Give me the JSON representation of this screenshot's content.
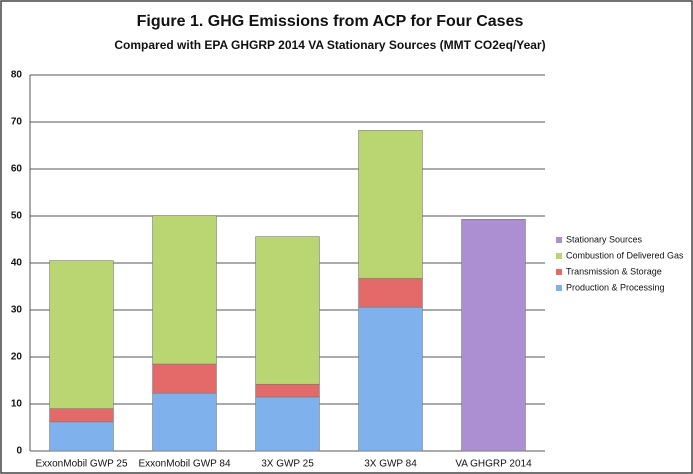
{
  "chart_data": {
    "type": "stacked-bar",
    "title": "Figure 1. GHG Emissions from ACP for Four Cases",
    "subtitle": "Compared with EPA GHGRP 2014 VA Stationary Sources (MMT CO2eq/Year)",
    "categories": [
      "ExxonMobil GWP 25",
      "ExxonMobil GWP 84",
      "3X GWP 25",
      "3X GWP 84",
      "VA GHGRP 2014"
    ],
    "series": [
      {
        "name": "Production & Processing",
        "color": "#7fb2ec",
        "values": [
          6.2,
          12.3,
          11.5,
          30.6,
          null
        ]
      },
      {
        "name": "Transmission & Storage",
        "color": "#e46a6a",
        "values": [
          2.8,
          6.2,
          2.7,
          6.1,
          null
        ]
      },
      {
        "name": "Combustion of Delivered Gas",
        "color": "#b9d672",
        "values": [
          31.5,
          31.6,
          31.4,
          31.5,
          null
        ]
      },
      {
        "name": "Stationary Sources",
        "color": "#ab8fd2",
        "values": [
          null,
          null,
          null,
          null,
          49.3
        ]
      }
    ],
    "ylim": [
      0,
      80
    ],
    "yticks": [
      0,
      10,
      20,
      30,
      40,
      50,
      60,
      70,
      80
    ],
    "grid": true,
    "legend": "right"
  }
}
